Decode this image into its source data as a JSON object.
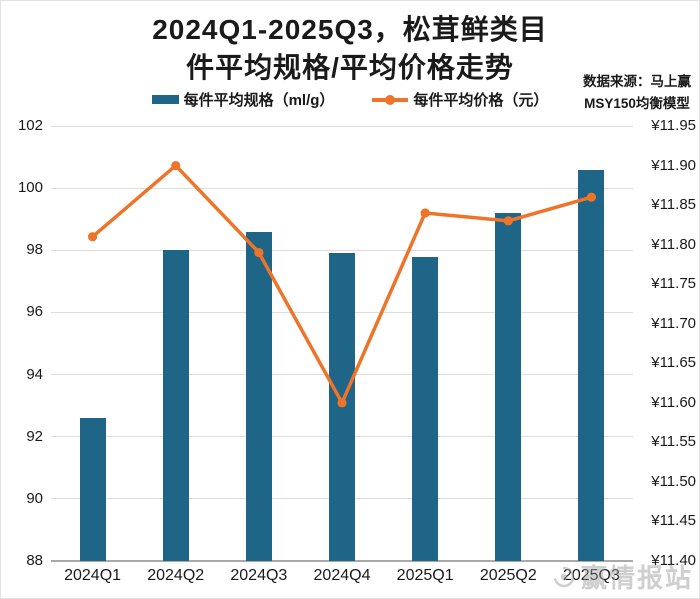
{
  "title": {
    "line1": "2024Q1-2025Q3，松茸鲜类目",
    "line2": "件平均规格/平均价格走势"
  },
  "source": {
    "line1": "数据来源：马上赢",
    "line2": "MSY150均衡模型"
  },
  "watermark": {
    "text": "赢情报站"
  },
  "colors": {
    "bar": "#1E6587",
    "line": "#ED7428",
    "grid": "#DCDCDC",
    "axis": "#A9A9A9",
    "text": "#1A1A1A"
  },
  "chart_data": {
    "type": "bar+line",
    "categories": [
      "2024Q1",
      "2024Q2",
      "2024Q3",
      "2024Q4",
      "2025Q1",
      "2025Q2",
      "2025Q3"
    ],
    "series": [
      {
        "name": "每件平均规格（ml/g）",
        "type": "bar",
        "axis": "left",
        "color": "#1E6587",
        "values": [
          92.6,
          98.0,
          98.6,
          97.9,
          97.8,
          99.2,
          100.6
        ]
      },
      {
        "name": "每件平均价格（元）",
        "type": "line",
        "axis": "right",
        "color": "#ED7428",
        "values": [
          11.81,
          11.9,
          11.79,
          11.6,
          11.84,
          11.83,
          11.86
        ]
      }
    ],
    "left_axis": {
      "min": 88,
      "max": 102,
      "tick_step": 2,
      "ticks": [
        102,
        100,
        98,
        96,
        94,
        92,
        90,
        88
      ]
    },
    "right_axis": {
      "min": 11.4,
      "max": 11.95,
      "tick_step": 0.05,
      "currency_prefix": "¥",
      "tick_labels": [
        "¥11.95",
        "¥11.90",
        "¥11.85",
        "¥11.80",
        "¥11.75",
        "¥11.70",
        "¥11.65",
        "¥11.60",
        "¥11.55",
        "¥11.50",
        "¥11.45",
        "¥11.40"
      ]
    },
    "grid": "horizontal gridlines on left-axis ticks",
    "legend_position": "top-center"
  }
}
